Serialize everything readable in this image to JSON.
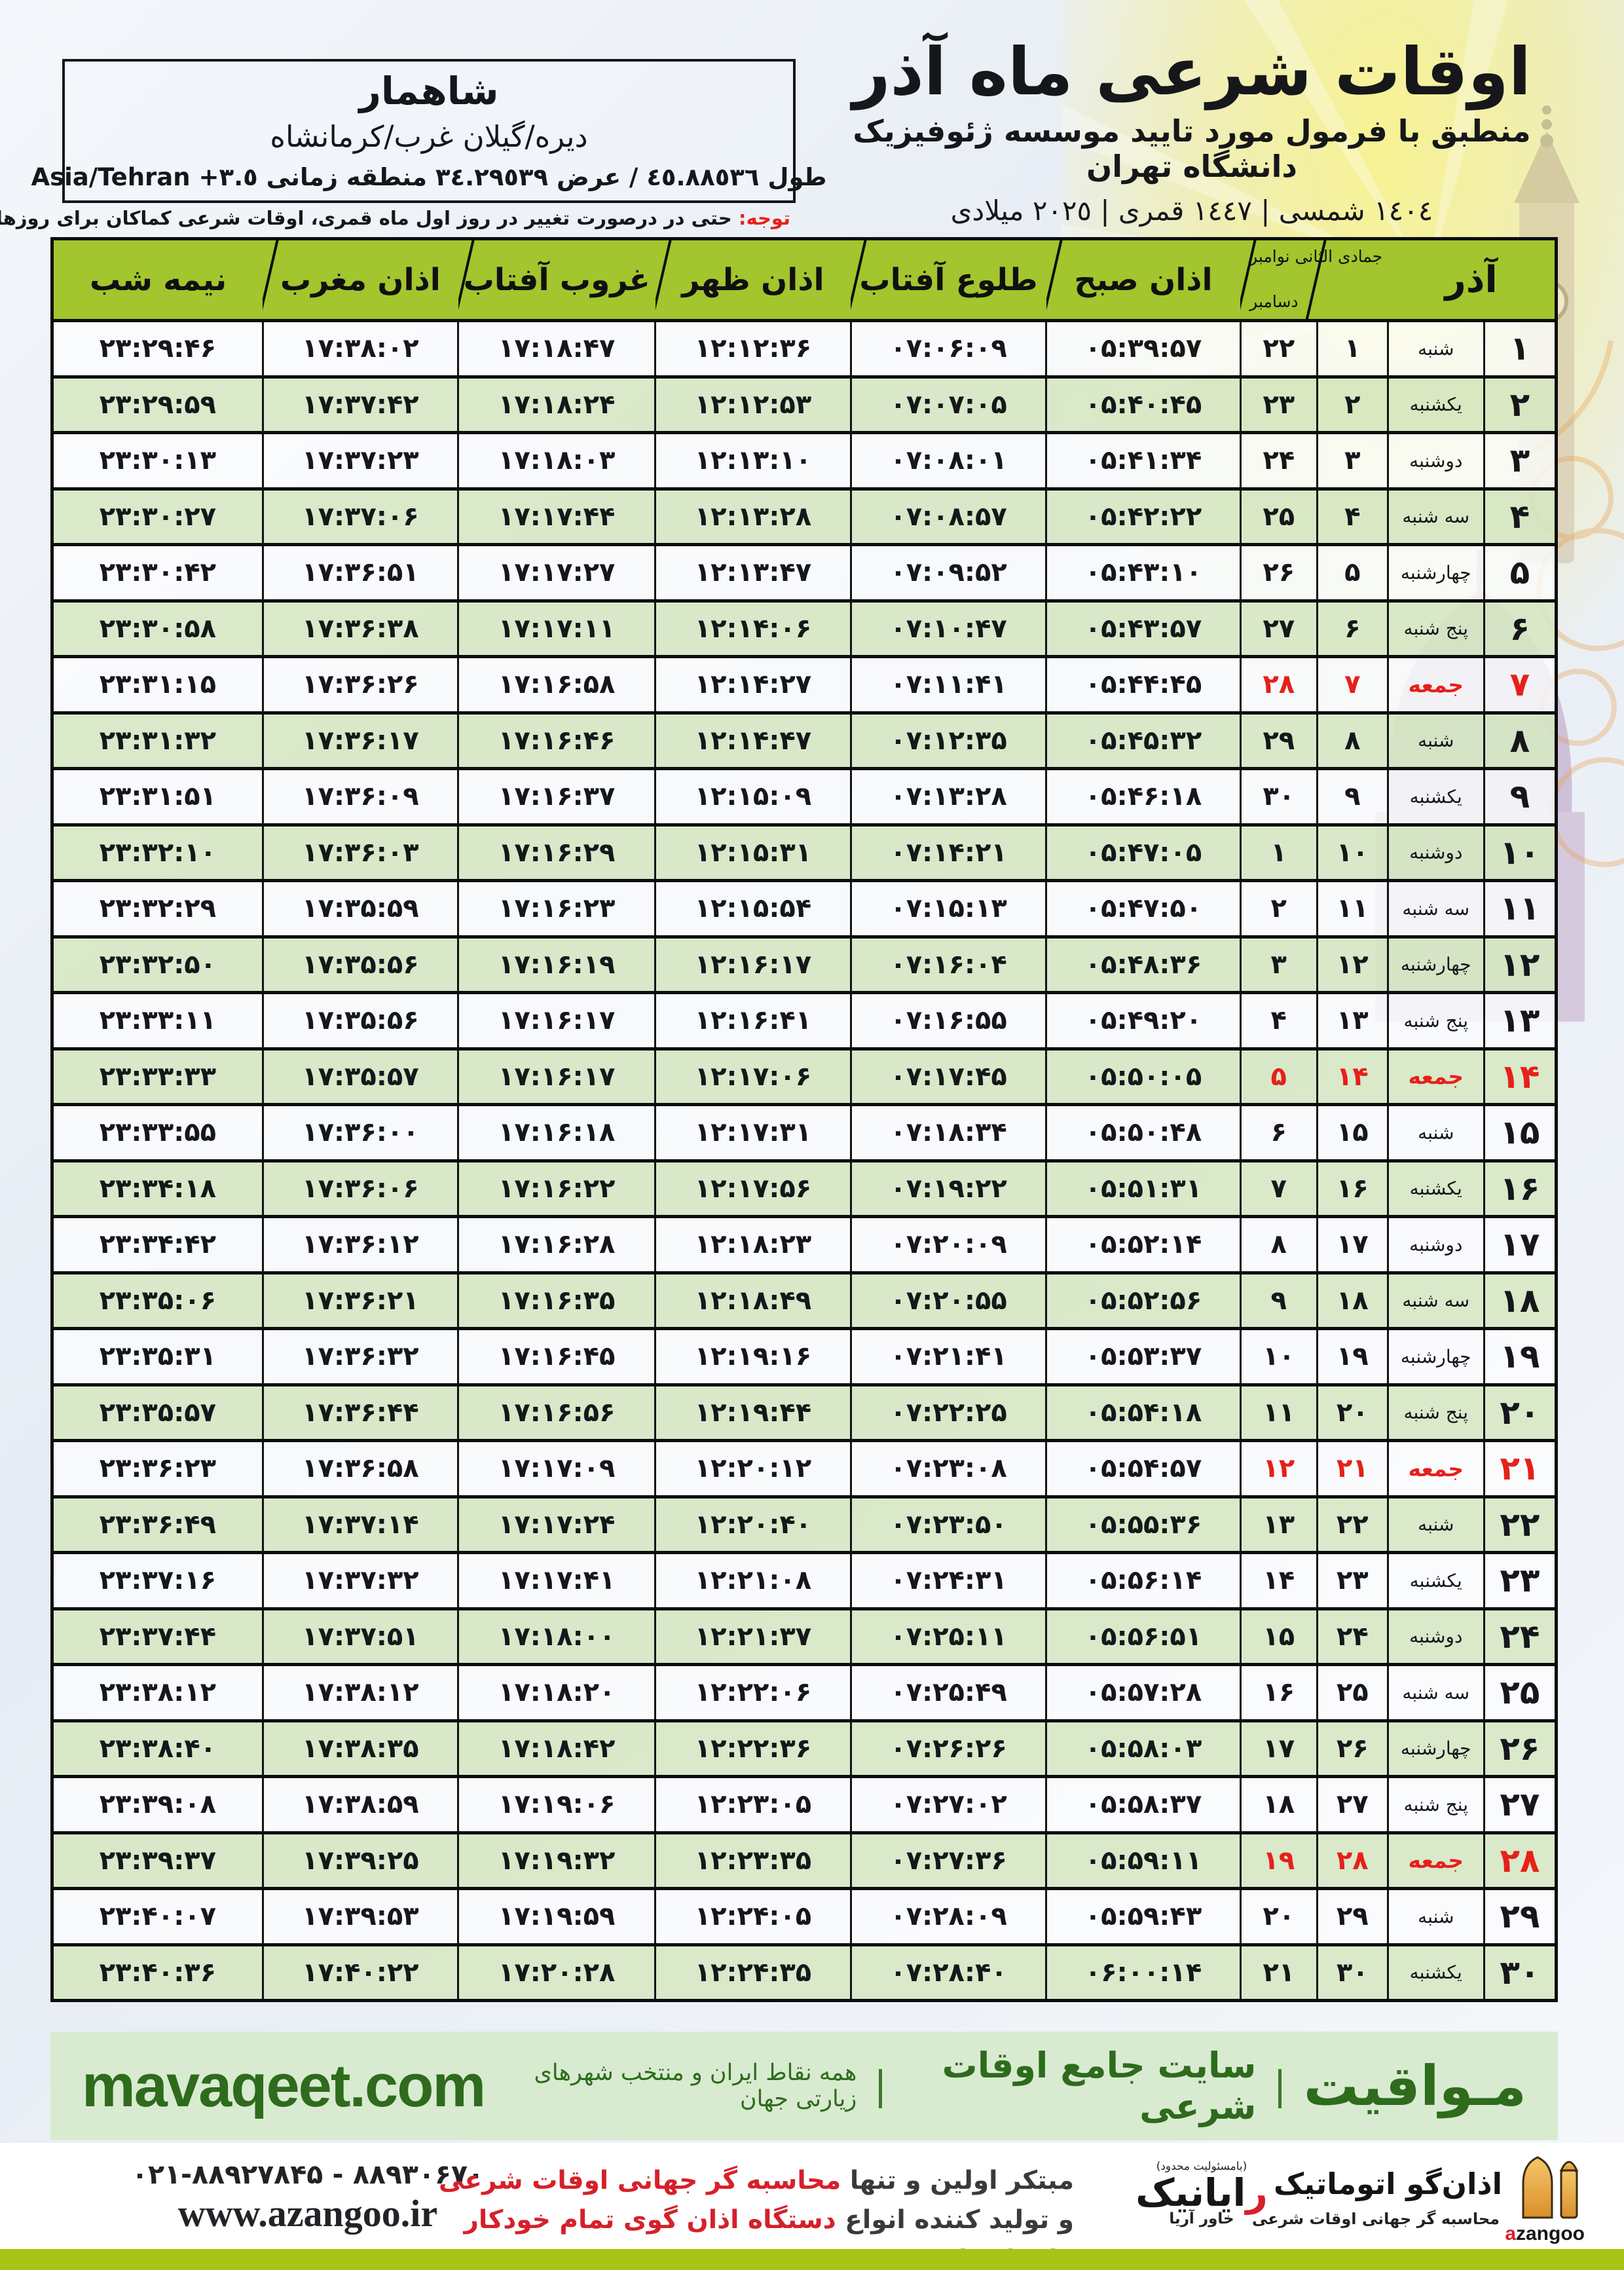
{
  "location": {
    "name": "شاهمار",
    "region": "دیره/گیلان غرب/کرمانشاه",
    "coords_fa": "طول ٤٥.٨٨٥٣٦ / عرض ٣٤.٢٩٥٣٩ منطقه زمانی",
    "coords_tz": "Asia/Tehran +٣.٥"
  },
  "notice": {
    "label": "توجه:",
    "text": " حتی در درصورت تغییر در روز اول ماه قمری، اوقات شرعی کماکان برای روزهای شمسی و میلادی معتبر است."
  },
  "header": {
    "title": "اوقات شرعی ماه آذر",
    "subtitle": "منطبق با فرمول مورد تایید موسسه ژئوفیزیک دانشگاه تهران",
    "dates": "١٤٠٤ شمسی | ١٤٤٧ قمری | ٢٠٢٥ میلادی"
  },
  "table": {
    "columns": {
      "azar": "آذر",
      "hijri_top": "جمادی الثانی نوامبر",
      "hijri_bottom": "دسامبر",
      "sobh": "اذان صبح",
      "tolu": "طلوع آفتاب",
      "zohr": "اذان ظهر",
      "ghorub": "غروب آفتاب",
      "maghreb": "اذان مغرب",
      "nimeshab": "نیمه شب"
    },
    "rows": [
      {
        "azar": "۱",
        "weekday": "شنبه",
        "lunar": "۱",
        "greg": "۲۲",
        "sobh": "۰۵:۳۹:۵۷",
        "tolu": "۰۷:۰۶:۰۹",
        "zohr": "۱۲:۱۲:۳۶",
        "ghorub": "۱۷:۱۸:۴۷",
        "maghreb": "۱۷:۳۸:۰۲",
        "nimeshab": "۲۳:۲۹:۴۶",
        "friday": false
      },
      {
        "azar": "۲",
        "weekday": "یکشنبه",
        "lunar": "۲",
        "greg": "۲۳",
        "sobh": "۰۵:۴۰:۴۵",
        "tolu": "۰۷:۰۷:۰۵",
        "zohr": "۱۲:۱۲:۵۳",
        "ghorub": "۱۷:۱۸:۲۴",
        "maghreb": "۱۷:۳۷:۴۲",
        "nimeshab": "۲۳:۲۹:۵۹",
        "friday": false
      },
      {
        "azar": "۳",
        "weekday": "دوشنبه",
        "lunar": "۳",
        "greg": "۲۴",
        "sobh": "۰۵:۴۱:۳۴",
        "tolu": "۰۷:۰۸:۰۱",
        "zohr": "۱۲:۱۳:۱۰",
        "ghorub": "۱۷:۱۸:۰۳",
        "maghreb": "۱۷:۳۷:۲۳",
        "nimeshab": "۲۳:۳۰:۱۳",
        "friday": false
      },
      {
        "azar": "۴",
        "weekday": "سه شنبه",
        "lunar": "۴",
        "greg": "۲۵",
        "sobh": "۰۵:۴۲:۲۲",
        "tolu": "۰۷:۰۸:۵۷",
        "zohr": "۱۲:۱۳:۲۸",
        "ghorub": "۱۷:۱۷:۴۴",
        "maghreb": "۱۷:۳۷:۰۶",
        "nimeshab": "۲۳:۳۰:۲۷",
        "friday": false
      },
      {
        "azar": "۵",
        "weekday": "چهارشنبه",
        "lunar": "۵",
        "greg": "۲۶",
        "sobh": "۰۵:۴۳:۱۰",
        "tolu": "۰۷:۰۹:۵۲",
        "zohr": "۱۲:۱۳:۴۷",
        "ghorub": "۱۷:۱۷:۲۷",
        "maghreb": "۱۷:۳۶:۵۱",
        "nimeshab": "۲۳:۳۰:۴۲",
        "friday": false
      },
      {
        "azar": "۶",
        "weekday": "پنج شنبه",
        "lunar": "۶",
        "greg": "۲۷",
        "sobh": "۰۵:۴۳:۵۷",
        "tolu": "۰۷:۱۰:۴۷",
        "zohr": "۱۲:۱۴:۰۶",
        "ghorub": "۱۷:۱۷:۱۱",
        "maghreb": "۱۷:۳۶:۳۸",
        "nimeshab": "۲۳:۳۰:۵۸",
        "friday": false
      },
      {
        "azar": "۷",
        "weekday": "جمعه",
        "lunar": "۷",
        "greg": "۲۸",
        "sobh": "۰۵:۴۴:۴۵",
        "tolu": "۰۷:۱۱:۴۱",
        "zohr": "۱۲:۱۴:۲۷",
        "ghorub": "۱۷:۱۶:۵۸",
        "maghreb": "۱۷:۳۶:۲۶",
        "nimeshab": "۲۳:۳۱:۱۵",
        "friday": true
      },
      {
        "azar": "۸",
        "weekday": "شنبه",
        "lunar": "۸",
        "greg": "۲۹",
        "sobh": "۰۵:۴۵:۳۲",
        "tolu": "۰۷:۱۲:۳۵",
        "zohr": "۱۲:۱۴:۴۷",
        "ghorub": "۱۷:۱۶:۴۶",
        "maghreb": "۱۷:۳۶:۱۷",
        "nimeshab": "۲۳:۳۱:۳۲",
        "friday": false
      },
      {
        "azar": "۹",
        "weekday": "یکشنبه",
        "lunar": "۹",
        "greg": "۳۰",
        "sobh": "۰۵:۴۶:۱۸",
        "tolu": "۰۷:۱۳:۲۸",
        "zohr": "۱۲:۱۵:۰۹",
        "ghorub": "۱۷:۱۶:۳۷",
        "maghreb": "۱۷:۳۶:۰۹",
        "nimeshab": "۲۳:۳۱:۵۱",
        "friday": false
      },
      {
        "azar": "۱۰",
        "weekday": "دوشنبه",
        "lunar": "۱۰",
        "greg": "۱",
        "sobh": "۰۵:۴۷:۰۵",
        "tolu": "۰۷:۱۴:۲۱",
        "zohr": "۱۲:۱۵:۳۱",
        "ghorub": "۱۷:۱۶:۲۹",
        "maghreb": "۱۷:۳۶:۰۳",
        "nimeshab": "۲۳:۳۲:۱۰",
        "friday": false
      },
      {
        "azar": "۱۱",
        "weekday": "سه شنبه",
        "lunar": "۱۱",
        "greg": "۲",
        "sobh": "۰۵:۴۷:۵۰",
        "tolu": "۰۷:۱۵:۱۳",
        "zohr": "۱۲:۱۵:۵۴",
        "ghorub": "۱۷:۱۶:۲۳",
        "maghreb": "۱۷:۳۵:۵۹",
        "nimeshab": "۲۳:۳۲:۲۹",
        "friday": false
      },
      {
        "azar": "۱۲",
        "weekday": "چهارشنبه",
        "lunar": "۱۲",
        "greg": "۳",
        "sobh": "۰۵:۴۸:۳۶",
        "tolu": "۰۷:۱۶:۰۴",
        "zohr": "۱۲:۱۶:۱۷",
        "ghorub": "۱۷:۱۶:۱۹",
        "maghreb": "۱۷:۳۵:۵۶",
        "nimeshab": "۲۳:۳۲:۵۰",
        "friday": false
      },
      {
        "azar": "۱۳",
        "weekday": "پنج شنبه",
        "lunar": "۱۳",
        "greg": "۴",
        "sobh": "۰۵:۴۹:۲۰",
        "tolu": "۰۷:۱۶:۵۵",
        "zohr": "۱۲:۱۶:۴۱",
        "ghorub": "۱۷:۱۶:۱۷",
        "maghreb": "۱۷:۳۵:۵۶",
        "nimeshab": "۲۳:۳۳:۱۱",
        "friday": false
      },
      {
        "azar": "۱۴",
        "weekday": "جمعه",
        "lunar": "۱۴",
        "greg": "۵",
        "sobh": "۰۵:۵۰:۰۵",
        "tolu": "۰۷:۱۷:۴۵",
        "zohr": "۱۲:۱۷:۰۶",
        "ghorub": "۱۷:۱۶:۱۷",
        "maghreb": "۱۷:۳۵:۵۷",
        "nimeshab": "۲۳:۳۳:۳۳",
        "friday": true
      },
      {
        "azar": "۱۵",
        "weekday": "شنبه",
        "lunar": "۱۵",
        "greg": "۶",
        "sobh": "۰۵:۵۰:۴۸",
        "tolu": "۰۷:۱۸:۳۴",
        "zohr": "۱۲:۱۷:۳۱",
        "ghorub": "۱۷:۱۶:۱۸",
        "maghreb": "۱۷:۳۶:۰۰",
        "nimeshab": "۲۳:۳۳:۵۵",
        "friday": false
      },
      {
        "azar": "۱۶",
        "weekday": "یکشنبه",
        "lunar": "۱۶",
        "greg": "۷",
        "sobh": "۰۵:۵۱:۳۱",
        "tolu": "۰۷:۱۹:۲۲",
        "zohr": "۱۲:۱۷:۵۶",
        "ghorub": "۱۷:۱۶:۲۲",
        "maghreb": "۱۷:۳۶:۰۶",
        "nimeshab": "۲۳:۳۴:۱۸",
        "friday": false
      },
      {
        "azar": "۱۷",
        "weekday": "دوشنبه",
        "lunar": "۱۷",
        "greg": "۸",
        "sobh": "۰۵:۵۲:۱۴",
        "tolu": "۰۷:۲۰:۰۹",
        "zohr": "۱۲:۱۸:۲۳",
        "ghorub": "۱۷:۱۶:۲۸",
        "maghreb": "۱۷:۳۶:۱۲",
        "nimeshab": "۲۳:۳۴:۴۲",
        "friday": false
      },
      {
        "azar": "۱۸",
        "weekday": "سه شنبه",
        "lunar": "۱۸",
        "greg": "۹",
        "sobh": "۰۵:۵۲:۵۶",
        "tolu": "۰۷:۲۰:۵۵",
        "zohr": "۱۲:۱۸:۴۹",
        "ghorub": "۱۷:۱۶:۳۵",
        "maghreb": "۱۷:۳۶:۲۱",
        "nimeshab": "۲۳:۳۵:۰۶",
        "friday": false
      },
      {
        "azar": "۱۹",
        "weekday": "چهارشنبه",
        "lunar": "۱۹",
        "greg": "۱۰",
        "sobh": "۰۵:۵۳:۳۷",
        "tolu": "۰۷:۲۱:۴۱",
        "zohr": "۱۲:۱۹:۱۶",
        "ghorub": "۱۷:۱۶:۴۵",
        "maghreb": "۱۷:۳۶:۳۲",
        "nimeshab": "۲۳:۳۵:۳۱",
        "friday": false
      },
      {
        "azar": "۲۰",
        "weekday": "پنج شنبه",
        "lunar": "۲۰",
        "greg": "۱۱",
        "sobh": "۰۵:۵۴:۱۸",
        "tolu": "۰۷:۲۲:۲۵",
        "zohr": "۱۲:۱۹:۴۴",
        "ghorub": "۱۷:۱۶:۵۶",
        "maghreb": "۱۷:۳۶:۴۴",
        "nimeshab": "۲۳:۳۵:۵۷",
        "friday": false
      },
      {
        "azar": "۲۱",
        "weekday": "جمعه",
        "lunar": "۲۱",
        "greg": "۱۲",
        "sobh": "۰۵:۵۴:۵۷",
        "tolu": "۰۷:۲۳:۰۸",
        "zohr": "۱۲:۲۰:۱۲",
        "ghorub": "۱۷:۱۷:۰۹",
        "maghreb": "۱۷:۳۶:۵۸",
        "nimeshab": "۲۳:۳۶:۲۳",
        "friday": true
      },
      {
        "azar": "۲۲",
        "weekday": "شنبه",
        "lunar": "۲۲",
        "greg": "۱۳",
        "sobh": "۰۵:۵۵:۳۶",
        "tolu": "۰۷:۲۳:۵۰",
        "zohr": "۱۲:۲۰:۴۰",
        "ghorub": "۱۷:۱۷:۲۴",
        "maghreb": "۱۷:۳۷:۱۴",
        "nimeshab": "۲۳:۳۶:۴۹",
        "friday": false
      },
      {
        "azar": "۲۳",
        "weekday": "یکشنبه",
        "lunar": "۲۳",
        "greg": "۱۴",
        "sobh": "۰۵:۵۶:۱۴",
        "tolu": "۰۷:۲۴:۳۱",
        "zohr": "۱۲:۲۱:۰۸",
        "ghorub": "۱۷:۱۷:۴۱",
        "maghreb": "۱۷:۳۷:۳۲",
        "nimeshab": "۲۳:۳۷:۱۶",
        "friday": false
      },
      {
        "azar": "۲۴",
        "weekday": "دوشنبه",
        "lunar": "۲۴",
        "greg": "۱۵",
        "sobh": "۰۵:۵۶:۵۱",
        "tolu": "۰۷:۲۵:۱۱",
        "zohr": "۱۲:۲۱:۳۷",
        "ghorub": "۱۷:۱۸:۰۰",
        "maghreb": "۱۷:۳۷:۵۱",
        "nimeshab": "۲۳:۳۷:۴۴",
        "friday": false
      },
      {
        "azar": "۲۵",
        "weekday": "سه شنبه",
        "lunar": "۲۵",
        "greg": "۱۶",
        "sobh": "۰۵:۵۷:۲۸",
        "tolu": "۰۷:۲۵:۴۹",
        "zohr": "۱۲:۲۲:۰۶",
        "ghorub": "۱۷:۱۸:۲۰",
        "maghreb": "۱۷:۳۸:۱۲",
        "nimeshab": "۲۳:۳۸:۱۲",
        "friday": false
      },
      {
        "azar": "۲۶",
        "weekday": "چهارشنبه",
        "lunar": "۲۶",
        "greg": "۱۷",
        "sobh": "۰۵:۵۸:۰۳",
        "tolu": "۰۷:۲۶:۲۶",
        "zohr": "۱۲:۲۲:۳۶",
        "ghorub": "۱۷:۱۸:۴۲",
        "maghreb": "۱۷:۳۸:۳۵",
        "nimeshab": "۲۳:۳۸:۴۰",
        "friday": false
      },
      {
        "azar": "۲۷",
        "weekday": "پنج شنبه",
        "lunar": "۲۷",
        "greg": "۱۸",
        "sobh": "۰۵:۵۸:۳۷",
        "tolu": "۰۷:۲۷:۰۲",
        "zohr": "۱۲:۲۳:۰۵",
        "ghorub": "۱۷:۱۹:۰۶",
        "maghreb": "۱۷:۳۸:۵۹",
        "nimeshab": "۲۳:۳۹:۰۸",
        "friday": false
      },
      {
        "azar": "۲۸",
        "weekday": "جمعه",
        "lunar": "۲۸",
        "greg": "۱۹",
        "sobh": "۰۵:۵۹:۱۱",
        "tolu": "۰۷:۲۷:۳۶",
        "zohr": "۱۲:۲۳:۳۵",
        "ghorub": "۱۷:۱۹:۳۲",
        "maghreb": "۱۷:۳۹:۲۵",
        "nimeshab": "۲۳:۳۹:۳۷",
        "friday": true
      },
      {
        "azar": "۲۹",
        "weekday": "شنبه",
        "lunar": "۲۹",
        "greg": "۲۰",
        "sobh": "۰۵:۵۹:۴۳",
        "tolu": "۰۷:۲۸:۰۹",
        "zohr": "۱۲:۲۴:۰۵",
        "ghorub": "۱۷:۱۹:۵۹",
        "maghreb": "۱۷:۳۹:۵۳",
        "nimeshab": "۲۳:۴۰:۰۷",
        "friday": false
      },
      {
        "azar": "۳۰",
        "weekday": "یکشنبه",
        "lunar": "۳۰",
        "greg": "۲۱",
        "sobh": "۰۶:۰۰:۱۴",
        "tolu": "۰۷:۲۸:۴۰",
        "zohr": "۱۲:۲۴:۳۵",
        "ghorub": "۱۷:۲۰:۲۸",
        "maghreb": "۱۷:۴۰:۲۲",
        "nimeshab": "۲۳:۴۰:۳۶",
        "friday": false
      }
    ]
  },
  "footer_bar": {
    "brand": "مـواقیت",
    "separator": "|",
    "site_label": "سایت جامع اوقات شرعی",
    "coverage": "همه نقاط ایران و منتخب شهرهای زیارتی جهان",
    "url": "mavaqeet.com"
  },
  "bottom": {
    "phone": "۰۲۱-۸۸۹۲۷۸۴۵ - ۸۸۹۳۰۶۷۰",
    "website": "www.azangoo.ir",
    "line1_dark": "مبتکر اولین و تنها ",
    "line1_red": "محاسبه گر جهانی اوقات شرعی",
    "line2_dark": "و تولید کننده انواع ",
    "line2_red": "دستگاه اذان گوی تمام خودکار ماهواره ای",
    "rayanik_note": "(بامسئولیت محدود)",
    "rayanik_first": "ر",
    "rayanik_rest": "ایانیک",
    "rayanik_sub": "خاور آریا",
    "azangoo_fa": "اذان‌گو اتوماتیک",
    "azangoo_sub": "محاسبه گر جهانی اوقات شرعی",
    "azangoo_en_a": "a",
    "azangoo_en_rest": "zangoo"
  },
  "colors": {
    "header_green": "#a3c52d",
    "row_green": "#d6e7c3",
    "friday_red": "#e6201a",
    "footer_bg": "#d8ebd0",
    "footer_text": "#2e6b1d",
    "bottom_bar_green": "#a6c414",
    "logo_orange": "#f0a63c"
  }
}
